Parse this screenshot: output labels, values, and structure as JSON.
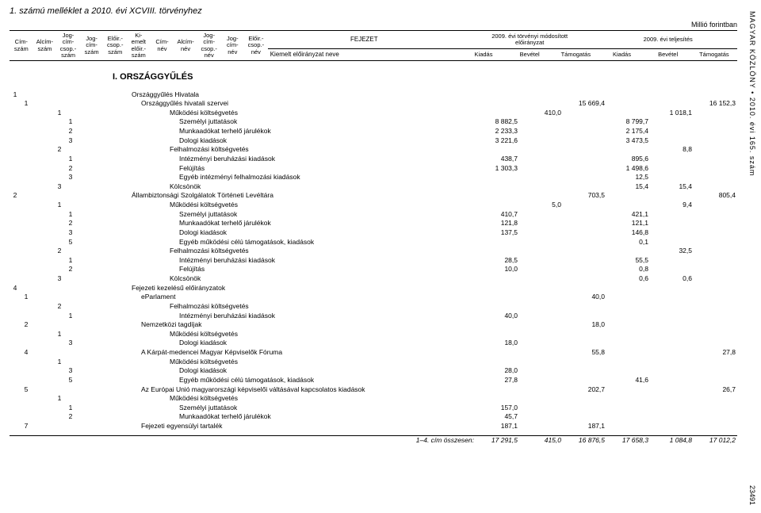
{
  "side_right": "MAGYAR KÖZLÖNY • 2010. évi 165. szám",
  "side_bottom": "23491",
  "title": "1. számú melléklet a 2010. évi XCVIII. törvényhez",
  "unit": "Millió forintban",
  "header": {
    "cols": [
      "Cím-\nszám",
      "Alcím-\nszám",
      "Jog-\ncím-\ncsop.-\nszám",
      "Jog-\ncím-\nszám",
      "Előir.-\ncsop.-\nszám",
      "Ki-\nemelt\nelőir.-\nszám",
      "Cím-\nnév",
      "Alcím-\nnév",
      "Jog-\ncím-\ncsop.-\nnév",
      "Jog-\ncím-\nnév",
      "Előir.-\ncsop.-\nnév"
    ],
    "fejezet": "FEJEZET",
    "kiemelt": "Kiemelt előirányzat neve",
    "group1": "2009. évi törvényi módosított\nelőirányzat",
    "group2": "2009. évi teljesítés",
    "amtcols": [
      "Kiadás",
      "Bevétel",
      "Támogatás",
      "Kiadás",
      "Bevétel",
      "Támogatás"
    ]
  },
  "section": "I. ORSZÁGGYŰLÉS",
  "rows": [
    {
      "i": [
        "1",
        "",
        "",
        "",
        "",
        "",
        "",
        "",
        "",
        "",
        ""
      ],
      "label": "Országgyűlés Hivatala",
      "v": [
        "",
        "",
        "",
        "",
        "",
        ""
      ]
    },
    {
      "i": [
        "",
        "1",
        "",
        "",
        "",
        "",
        "",
        "",
        "",
        "",
        ""
      ],
      "label": "Országgyűlés hivatali szervei",
      "v": [
        "",
        "",
        "15 669,4",
        "",
        "",
        "16 152,3"
      ]
    },
    {
      "i": [
        "",
        "",
        "",
        "",
        "1",
        "",
        "",
        "",
        "",
        "",
        ""
      ],
      "label": "Működési költségvetés",
      "v": [
        "",
        "410,0",
        "",
        "",
        "1 018,1",
        ""
      ]
    },
    {
      "i": [
        "",
        "",
        "",
        "",
        "",
        "1",
        "",
        "",
        "",
        "",
        ""
      ],
      "label": "Személyi juttatások",
      "v": [
        "8 882,5",
        "",
        "",
        "8 799,7",
        "",
        ""
      ]
    },
    {
      "i": [
        "",
        "",
        "",
        "",
        "",
        "2",
        "",
        "",
        "",
        "",
        ""
      ],
      "label": "Munkaadókat terhelő járulékok",
      "v": [
        "2 233,3",
        "",
        "",
        "2 175,4",
        "",
        ""
      ]
    },
    {
      "i": [
        "",
        "",
        "",
        "",
        "",
        "3",
        "",
        "",
        "",
        "",
        ""
      ],
      "label": "Dologi kiadások",
      "v": [
        "3 221,6",
        "",
        "",
        "3 473,5",
        "",
        ""
      ]
    },
    {
      "i": [
        "",
        "",
        "",
        "",
        "2",
        "",
        "",
        "",
        "",
        "",
        ""
      ],
      "label": "Felhalmozási költségvetés",
      "v": [
        "",
        "",
        "",
        "",
        "8,8",
        ""
      ]
    },
    {
      "i": [
        "",
        "",
        "",
        "",
        "",
        "1",
        "",
        "",
        "",
        "",
        ""
      ],
      "label": "Intézményi beruházási kiadások",
      "v": [
        "438,7",
        "",
        "",
        "895,6",
        "",
        ""
      ]
    },
    {
      "i": [
        "",
        "",
        "",
        "",
        "",
        "2",
        "",
        "",
        "",
        "",
        ""
      ],
      "label": "Felújítás",
      "v": [
        "1 303,3",
        "",
        "",
        "1 498,6",
        "",
        ""
      ]
    },
    {
      "i": [
        "",
        "",
        "",
        "",
        "",
        "3",
        "",
        "",
        "",
        "",
        ""
      ],
      "label": "Egyéb intézményi felhalmozási kiadások",
      "v": [
        "",
        "",
        "",
        "12,5",
        "",
        ""
      ]
    },
    {
      "i": [
        "",
        "",
        "",
        "",
        "3",
        "",
        "",
        "",
        "",
        "",
        ""
      ],
      "label": "Kölcsönök",
      "v": [
        "",
        "",
        "",
        "15,4",
        "15,4",
        ""
      ]
    },
    {
      "i": [
        "2",
        "",
        "",
        "",
        "",
        "",
        "",
        "",
        "",
        "",
        ""
      ],
      "label": "Állambiztonsági Szolgálatok Történeti Levéltára",
      "v": [
        "",
        "",
        "703,5",
        "",
        "",
        "805,4"
      ]
    },
    {
      "i": [
        "",
        "",
        "",
        "",
        "1",
        "",
        "",
        "",
        "",
        "",
        ""
      ],
      "label": "Működési költségvetés",
      "v": [
        "",
        "5,0",
        "",
        "",
        "9,4",
        ""
      ]
    },
    {
      "i": [
        "",
        "",
        "",
        "",
        "",
        "1",
        "",
        "",
        "",
        "",
        ""
      ],
      "label": "Személyi juttatások",
      "v": [
        "410,7",
        "",
        "",
        "421,1",
        "",
        ""
      ]
    },
    {
      "i": [
        "",
        "",
        "",
        "",
        "",
        "2",
        "",
        "",
        "",
        "",
        ""
      ],
      "label": "Munkaadókat terhelő járulékok",
      "v": [
        "121,8",
        "",
        "",
        "121,1",
        "",
        ""
      ]
    },
    {
      "i": [
        "",
        "",
        "",
        "",
        "",
        "3",
        "",
        "",
        "",
        "",
        ""
      ],
      "label": "Dologi kiadások",
      "v": [
        "137,5",
        "",
        "",
        "146,8",
        "",
        ""
      ]
    },
    {
      "i": [
        "",
        "",
        "",
        "",
        "",
        "5",
        "",
        "",
        "",
        "",
        ""
      ],
      "label": "Egyéb működési célú támogatások, kiadások",
      "v": [
        "",
        "",
        "",
        "0,1",
        "",
        ""
      ]
    },
    {
      "i": [
        "",
        "",
        "",
        "",
        "2",
        "",
        "",
        "",
        "",
        "",
        ""
      ],
      "label": "Felhalmozási költségvetés",
      "v": [
        "",
        "",
        "",
        "",
        "32,5",
        ""
      ]
    },
    {
      "i": [
        "",
        "",
        "",
        "",
        "",
        "1",
        "",
        "",
        "",
        "",
        ""
      ],
      "label": "Intézményi beruházási kiadások",
      "v": [
        "28,5",
        "",
        "",
        "55,5",
        "",
        ""
      ]
    },
    {
      "i": [
        "",
        "",
        "",
        "",
        "",
        "2",
        "",
        "",
        "",
        "",
        ""
      ],
      "label": "Felújítás",
      "v": [
        "10,0",
        "",
        "",
        "0,8",
        "",
        ""
      ]
    },
    {
      "i": [
        "",
        "",
        "",
        "",
        "3",
        "",
        "",
        "",
        "",
        "",
        ""
      ],
      "label": "Kölcsönök",
      "v": [
        "",
        "",
        "",
        "0,6",
        "0,6",
        ""
      ]
    },
    {
      "i": [
        "4",
        "",
        "",
        "",
        "",
        "",
        "",
        "",
        "",
        "",
        ""
      ],
      "label": "Fejezeti kezelésű előirányzatok",
      "v": [
        "",
        "",
        "",
        "",
        "",
        ""
      ]
    },
    {
      "i": [
        "",
        "1",
        "",
        "",
        "",
        "",
        "",
        "",
        "",
        "",
        ""
      ],
      "label": "eParlament",
      "v": [
        "",
        "",
        "40,0",
        "",
        "",
        ""
      ]
    },
    {
      "i": [
        "",
        "",
        "",
        "",
        "2",
        "",
        "",
        "",
        "",
        "",
        ""
      ],
      "label": "Felhalmozási költségvetés",
      "v": [
        "",
        "",
        "",
        "",
        "",
        ""
      ]
    },
    {
      "i": [
        "",
        "",
        "",
        "",
        "",
        "1",
        "",
        "",
        "",
        "",
        ""
      ],
      "label": "Intézményi beruházási kiadások",
      "v": [
        "40,0",
        "",
        "",
        "",
        "",
        ""
      ]
    },
    {
      "i": [
        "",
        "2",
        "",
        "",
        "",
        "",
        "",
        "",
        "",
        "",
        ""
      ],
      "label": "Nemzetközi tagdíjak",
      "v": [
        "",
        "",
        "18,0",
        "",
        "",
        ""
      ]
    },
    {
      "i": [
        "",
        "",
        "",
        "",
        "1",
        "",
        "",
        "",
        "",
        "",
        ""
      ],
      "label": "Működési költségvetés",
      "v": [
        "",
        "",
        "",
        "",
        "",
        ""
      ]
    },
    {
      "i": [
        "",
        "",
        "",
        "",
        "",
        "3",
        "",
        "",
        "",
        "",
        ""
      ],
      "label": "Dologi kiadások",
      "v": [
        "18,0",
        "",
        "",
        "",
        "",
        ""
      ]
    },
    {
      "i": [
        "",
        "4",
        "",
        "",
        "",
        "",
        "",
        "",
        "",
        "",
        ""
      ],
      "label": "A Kárpát-medencei Magyar Képviselők Fóruma",
      "v": [
        "",
        "",
        "55,8",
        "",
        "",
        "27,8"
      ]
    },
    {
      "i": [
        "",
        "",
        "",
        "",
        "1",
        "",
        "",
        "",
        "",
        "",
        ""
      ],
      "label": "Működési költségvetés",
      "v": [
        "",
        "",
        "",
        "",
        "",
        ""
      ]
    },
    {
      "i": [
        "",
        "",
        "",
        "",
        "",
        "3",
        "",
        "",
        "",
        "",
        ""
      ],
      "label": "Dologi kiadások",
      "v": [
        "28,0",
        "",
        "",
        "",
        "",
        ""
      ]
    },
    {
      "i": [
        "",
        "",
        "",
        "",
        "",
        "5",
        "",
        "",
        "",
        "",
        ""
      ],
      "label": "Egyéb működési célú támogatások, kiadások",
      "v": [
        "27,8",
        "",
        "",
        "41,6",
        "",
        ""
      ]
    },
    {
      "i": [
        "",
        "5",
        "",
        "",
        "",
        "",
        "",
        "",
        "",
        "",
        ""
      ],
      "label": "Az Európai Unió magyarországi képviselői váltásával kapcsolatos kiadások",
      "v": [
        "",
        "",
        "202,7",
        "",
        "",
        "26,7"
      ]
    },
    {
      "i": [
        "",
        "",
        "",
        "",
        "1",
        "",
        "",
        "",
        "",
        "",
        ""
      ],
      "label": "Működési költségvetés",
      "v": [
        "",
        "",
        "",
        "",
        "",
        ""
      ]
    },
    {
      "i": [
        "",
        "",
        "",
        "",
        "",
        "1",
        "",
        "",
        "",
        "",
        ""
      ],
      "label": "Személyi juttatások",
      "v": [
        "157,0",
        "",
        "",
        "",
        "",
        ""
      ]
    },
    {
      "i": [
        "",
        "",
        "",
        "",
        "",
        "2",
        "",
        "",
        "",
        "",
        ""
      ],
      "label": "Munkaadókat terhelő járulékok",
      "v": [
        "45,7",
        "",
        "",
        "",
        "",
        ""
      ]
    },
    {
      "i": [
        "",
        "7",
        "",
        "",
        "",
        "",
        "",
        "",
        "",
        "",
        ""
      ],
      "label": "Fejezeti egyensúlyi tartalék",
      "v": [
        "187,1",
        "",
        "187,1",
        "",
        "",
        ""
      ]
    }
  ],
  "summary": {
    "label": "1–4. cím összesen:",
    "v": [
      "17 291,5",
      "415,0",
      "16 876,5",
      "17 658,3",
      "1 084,8",
      "17 012,2"
    ]
  }
}
